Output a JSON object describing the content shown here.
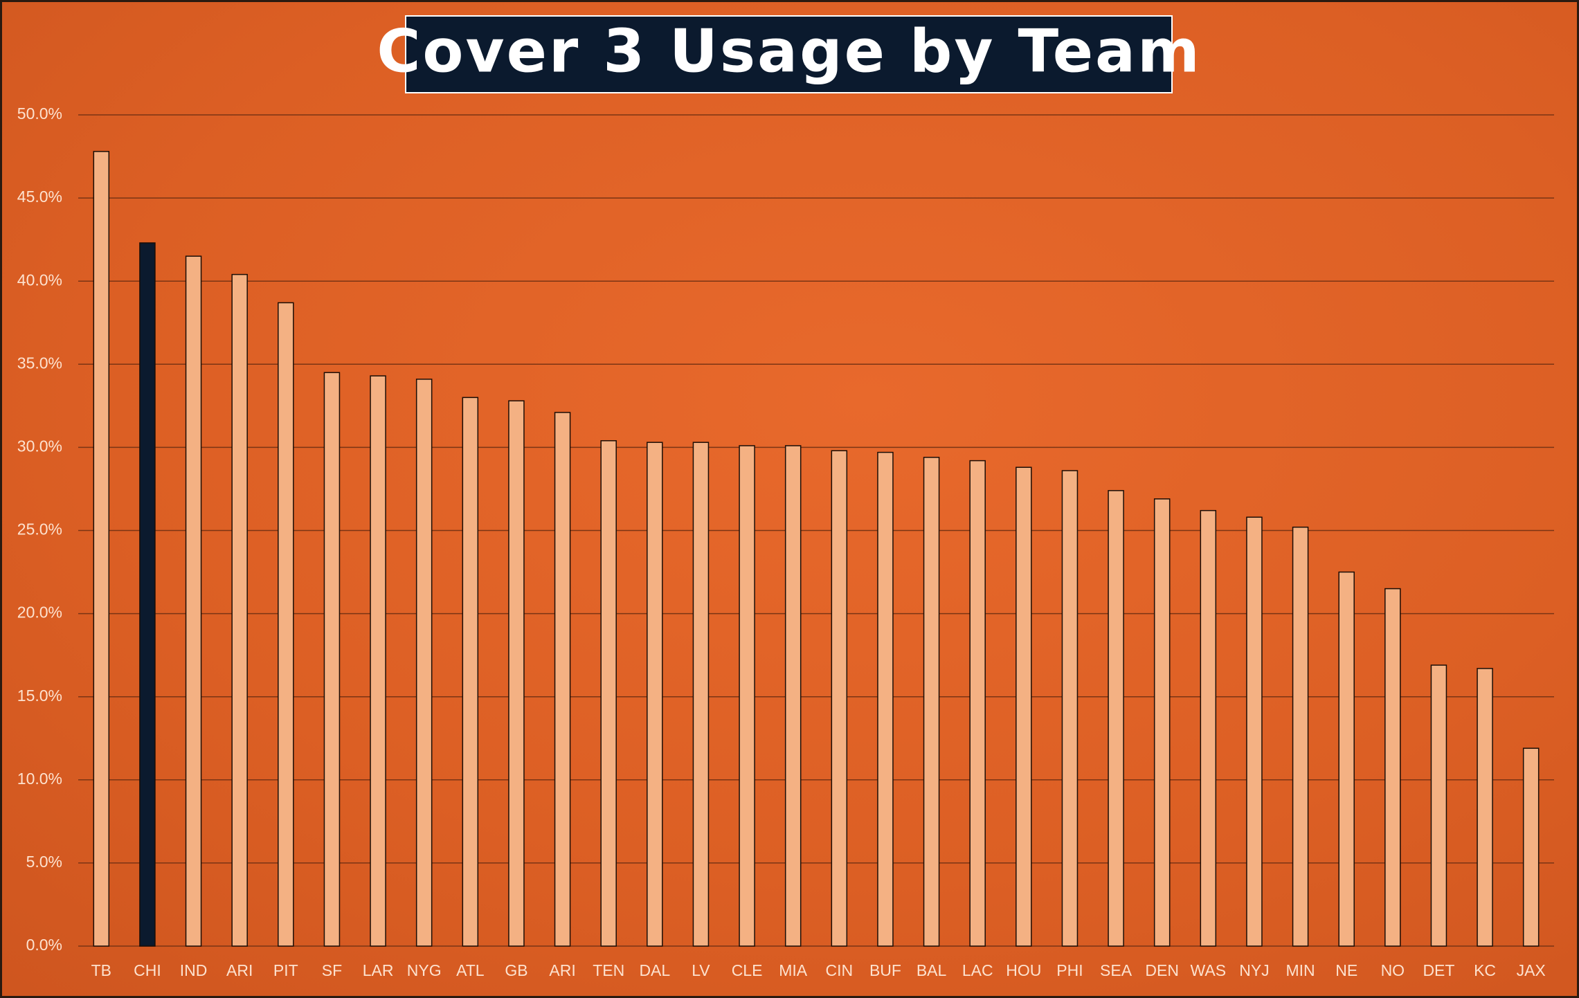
{
  "chart_data": {
    "type": "bar",
    "title": "Cover 3 Usage by Team",
    "categories": [
      "TB",
      "CHI",
      "IND",
      "ARI",
      "PIT",
      "SF",
      "LAR",
      "NYG",
      "ATL",
      "GB",
      "ARI",
      "TEN",
      "DAL",
      "LV",
      "CLE",
      "MIA",
      "CIN",
      "BUF",
      "BAL",
      "LAC",
      "HOU",
      "PHI",
      "SEA",
      "DEN",
      "WAS",
      "NYJ",
      "MIN",
      "NE",
      "NO",
      "DET",
      "KC",
      "JAX"
    ],
    "values": [
      47.8,
      42.3,
      41.5,
      40.4,
      38.7,
      34.5,
      34.3,
      34.1,
      33.0,
      32.8,
      32.1,
      30.4,
      30.3,
      30.3,
      30.1,
      30.1,
      29.8,
      29.7,
      29.4,
      29.2,
      28.8,
      28.6,
      27.4,
      26.9,
      26.2,
      25.8,
      25.2,
      22.5,
      21.5,
      16.9,
      16.7,
      11.9
    ],
    "colors": [
      "#f4b183",
      "#0b1a2e",
      "#f4b183",
      "#f4b183",
      "#f4b183",
      "#f4b183",
      "#f4b183",
      "#f4b183",
      "#f4b183",
      "#f4b183",
      "#f4b183",
      "#f4b183",
      "#f4b183",
      "#f4b183",
      "#f4b183",
      "#f4b183",
      "#f4b183",
      "#f4b183",
      "#f4b183",
      "#f4b183",
      "#f4b183",
      "#f4b183",
      "#f4b183",
      "#f4b183",
      "#f4b183",
      "#f4b183",
      "#f4b183",
      "#f4b183",
      "#f4b183",
      "#f4b183",
      "#f4b183",
      "#f4b183"
    ],
    "ylim": [
      0,
      50
    ],
    "yticks": [
      {
        "value": 0,
        "label": "0.0%"
      },
      {
        "value": 5,
        "label": "5.0%"
      },
      {
        "value": 10,
        "label": "10.0%"
      },
      {
        "value": 15,
        "label": "15.0%"
      },
      {
        "value": 20,
        "label": "20.0%"
      },
      {
        "value": 25,
        "label": "25.0%"
      },
      {
        "value": 30,
        "label": "30.0%"
      },
      {
        "value": 35,
        "label": "35.0%"
      },
      {
        "value": 40,
        "label": "40.0%"
      },
      {
        "value": 45,
        "label": "45.0%"
      },
      {
        "value": 50,
        "label": "50.0%"
      }
    ],
    "grid": true
  }
}
